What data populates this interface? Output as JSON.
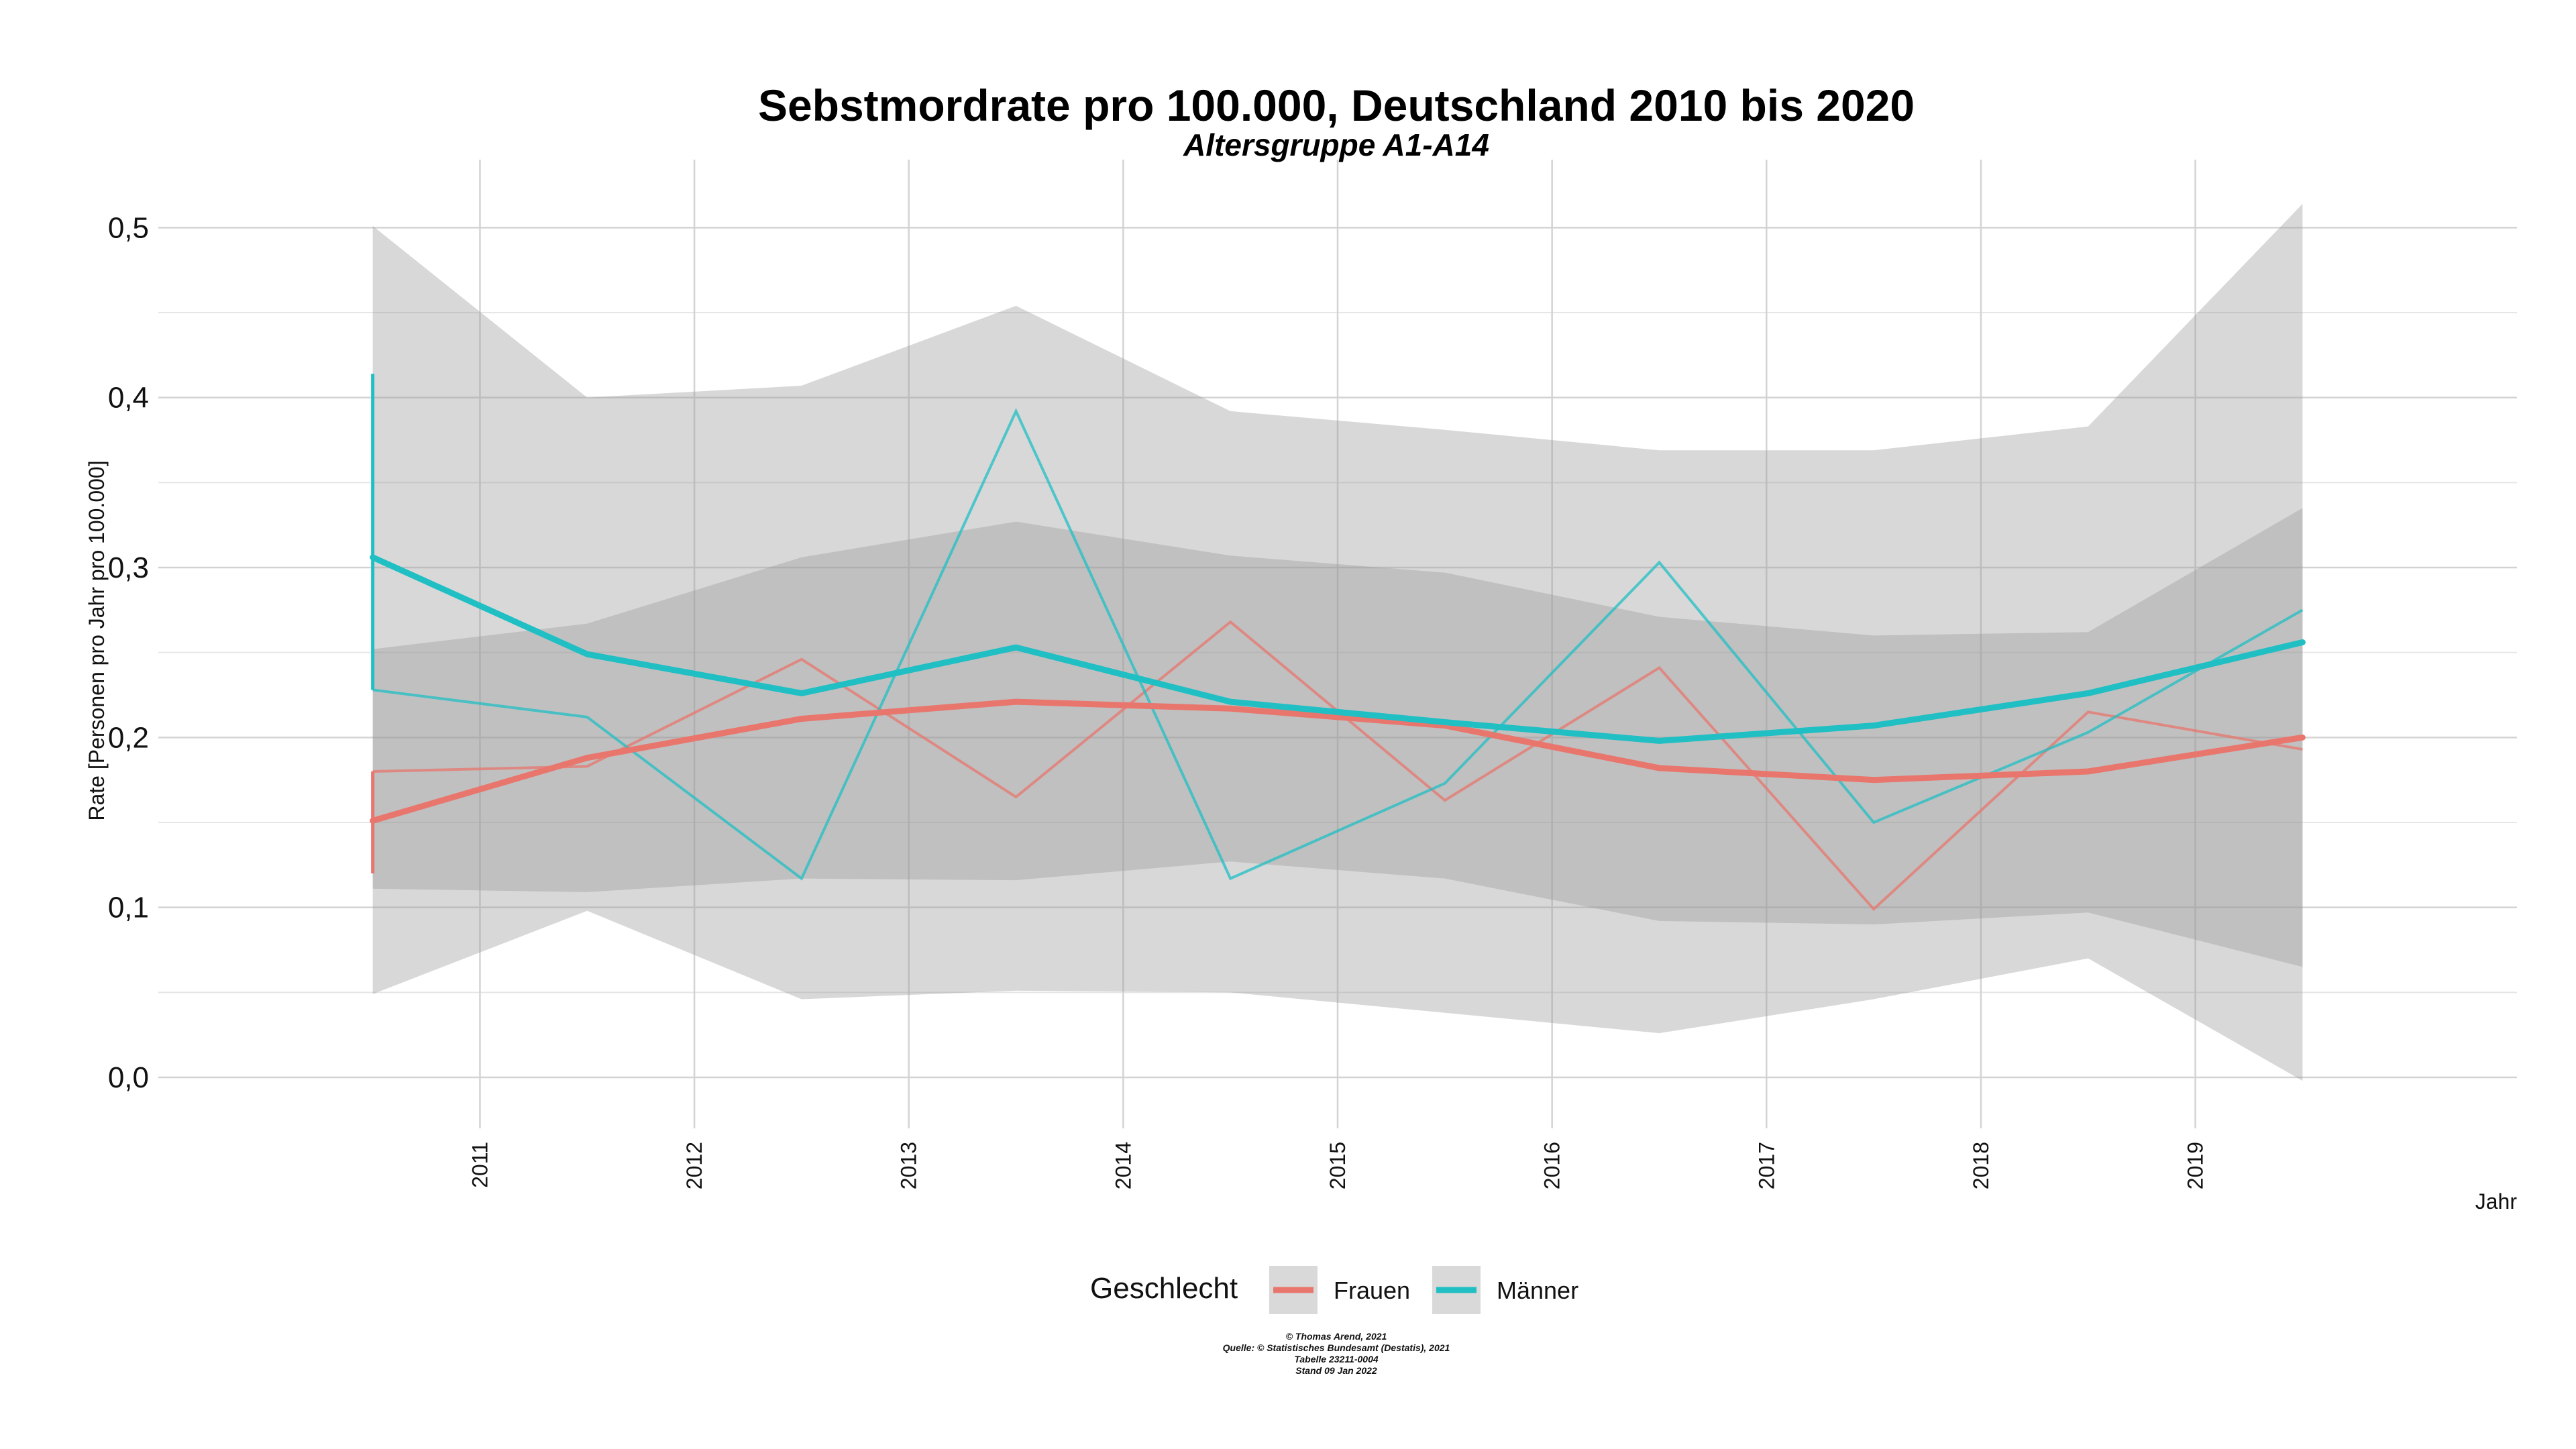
{
  "chart_data": {
    "type": "line",
    "title": "Sebstmordrate pro 100.000, Deutschland  2010 bis 2020",
    "subtitle": "Altersgruppe A1-A14",
    "xlabel": "Jahr",
    "ylabel": "Rate [Personen pro Jahr pro 100.000]",
    "x_ticks": [
      "2011",
      "2012",
      "2013",
      "2014",
      "2015",
      "2016",
      "2017",
      "2018",
      "2019"
    ],
    "x_tick_values": [
      2011,
      2012,
      2013,
      2014,
      2015,
      2016,
      2017,
      2018,
      2019
    ],
    "xlim": [
      2009.5,
      2020.5
    ],
    "ylim": [
      -0.03,
      0.54
    ],
    "y_ticks": [
      "0,0",
      "0,1",
      "0,2",
      "0,3",
      "0,4",
      "0,5"
    ],
    "y_tick_values": [
      0,
      0.1,
      0.2,
      0.3,
      0.4,
      0.5
    ],
    "grid": true,
    "legend": {
      "title": "Geschlecht",
      "position": "bottom",
      "entries": [
        "Frauen",
        "Männer"
      ]
    },
    "colors": {
      "frauen": "#E8766D",
      "maenner": "#1FBFC4",
      "band": "#BEBEBE"
    },
    "x": [
      2010.5,
      2011.5,
      2012.5,
      2013.5,
      2014.5,
      2015.5,
      2016.5,
      2017.5,
      2018.5,
      2019.5
    ],
    "series": [
      {
        "name": "Frauen",
        "kind": "raw",
        "values": [
          0.18,
          0.183,
          0.246,
          0.165,
          0.268,
          0.163,
          0.241,
          0.099,
          0.215,
          0.193
        ],
        "start_tick": [
          0.12,
          0.18
        ]
      },
      {
        "name": "Männer",
        "kind": "raw",
        "values": [
          0.228,
          0.212,
          0.117,
          0.392,
          0.117,
          0.173,
          0.303,
          0.15,
          0.203,
          0.275
        ],
        "start_tick": [
          0.228,
          0.414
        ]
      },
      {
        "name": "Frauen",
        "kind": "smooth",
        "values": [
          0.151,
          0.188,
          0.211,
          0.221,
          0.217,
          0.207,
          0.182,
          0.175,
          0.18,
          0.2
        ],
        "band_low": [
          0.049,
          0.098,
          0.046,
          0.051,
          0.05,
          0.038,
          0.026,
          0.046,
          0.07,
          -0.002
        ],
        "band_high": [
          0.252,
          0.267,
          0.306,
          0.327,
          0.307,
          0.297,
          0.271,
          0.26,
          0.262,
          0.335
        ]
      },
      {
        "name": "Männer",
        "kind": "smooth",
        "values": [
          0.306,
          0.249,
          0.226,
          0.253,
          0.221,
          0.209,
          0.198,
          0.207,
          0.226,
          0.256
        ],
        "band_low": [
          0.111,
          0.109,
          0.117,
          0.116,
          0.127,
          0.117,
          0.092,
          0.09,
          0.097,
          0.065
        ],
        "band_high": [
          0.501,
          0.4,
          0.407,
          0.454,
          0.392,
          0.381,
          0.369,
          0.369,
          0.383,
          0.514
        ]
      }
    ],
    "caption": [
      "© Thomas Arend, 2021",
      "Quelle: © Statistisches Bundesamt (Destatis), 2021",
      "Tabelle 23211-0004",
      "Stand 09 Jan 2022"
    ]
  }
}
